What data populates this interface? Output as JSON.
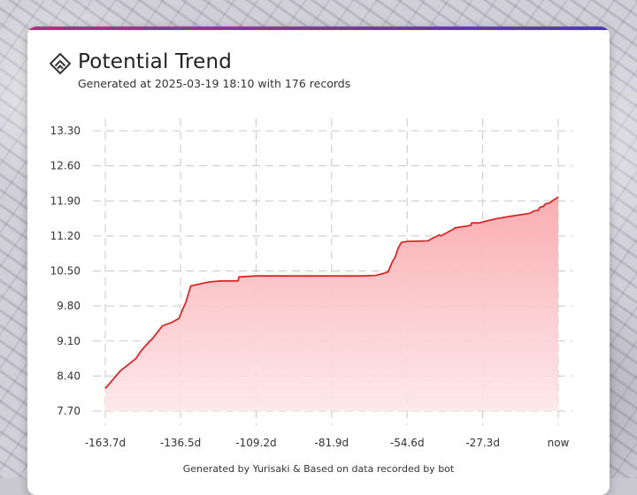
{
  "card": {
    "title": "Potential Trend",
    "subtitle": "Generated at 2025-03-19 18:10 with 176 records",
    "footer": "Generated by Yurisaki & Based on data recorded by bot",
    "logo_icon": "arcaea-logo-icon"
  },
  "colors": {
    "line": "#d42a2a",
    "fill_top": "#f9a9ad",
    "fill_bottom": "#fde6e8",
    "accent_start": "#b0327a",
    "accent_end": "#4c3bb5"
  },
  "chart_data": {
    "type": "area",
    "title": "",
    "xlabel": "",
    "ylabel": "",
    "xlim": [
      -163.7,
      0
    ],
    "ylim": [
      7.7,
      13.3
    ],
    "grid": true,
    "x_ticks": [
      -163.7,
      -136.5,
      -109.2,
      -81.9,
      -54.6,
      -27.3,
      0
    ],
    "x_tick_labels": [
      "-163.7d",
      "-136.5d",
      "-109.2d",
      "-81.9d",
      "-54.6d",
      "-27.3d",
      "now"
    ],
    "y_ticks": [
      7.7,
      8.4,
      9.1,
      9.8,
      10.5,
      11.2,
      11.9,
      12.6,
      13.3
    ],
    "y_tick_labels": [
      "7.70",
      "8.40",
      "9.10",
      "9.80",
      "10.50",
      "11.20",
      "11.90",
      "12.60",
      "13.30"
    ],
    "series": [
      {
        "x": [
          -163.7,
          -158.3,
          -152.6,
          -150.8,
          -148.4,
          -146.6,
          -143.1,
          -139.7,
          -137.1,
          -135.6,
          -134.6,
          -132.8,
          -126.2,
          -121.8,
          -115.7,
          -115.4,
          -109.2,
          -100.5,
          -90.0,
          -81.9,
          -70.9,
          -66.0,
          -63.1,
          -61.5,
          -60.2,
          -59.6,
          -58.9,
          -58.1,
          -57.6,
          -56.7,
          -54.6,
          -47.1,
          -45.2,
          -43.9,
          -43.0,
          -42.4,
          -40.4,
          -38.0,
          -37.4,
          -36.2,
          -33.9,
          -31.6,
          -31.3,
          -28.7,
          -24.3,
          -22.7,
          -21.7,
          -17.5,
          -10.3,
          -8.8,
          -7.2,
          -6.7,
          -5.4,
          -4.6,
          -3.0,
          -2.2,
          -0.4,
          0
        ],
        "y": [
          8.15,
          8.5,
          8.75,
          8.9,
          9.05,
          9.15,
          9.4,
          9.47,
          9.55,
          9.75,
          9.87,
          10.2,
          10.28,
          10.3,
          10.3,
          10.38,
          10.4,
          10.4,
          10.4,
          10.4,
          10.4,
          10.41,
          10.45,
          10.48,
          10.65,
          10.72,
          10.78,
          10.92,
          10.98,
          11.07,
          11.09,
          11.1,
          11.16,
          11.19,
          11.22,
          11.2,
          11.26,
          11.33,
          11.36,
          11.37,
          11.39,
          11.41,
          11.46,
          11.46,
          11.52,
          11.54,
          11.55,
          11.59,
          11.65,
          11.7,
          11.71,
          11.77,
          11.79,
          11.84,
          11.86,
          11.9,
          11.96,
          11.98
        ]
      }
    ]
  }
}
